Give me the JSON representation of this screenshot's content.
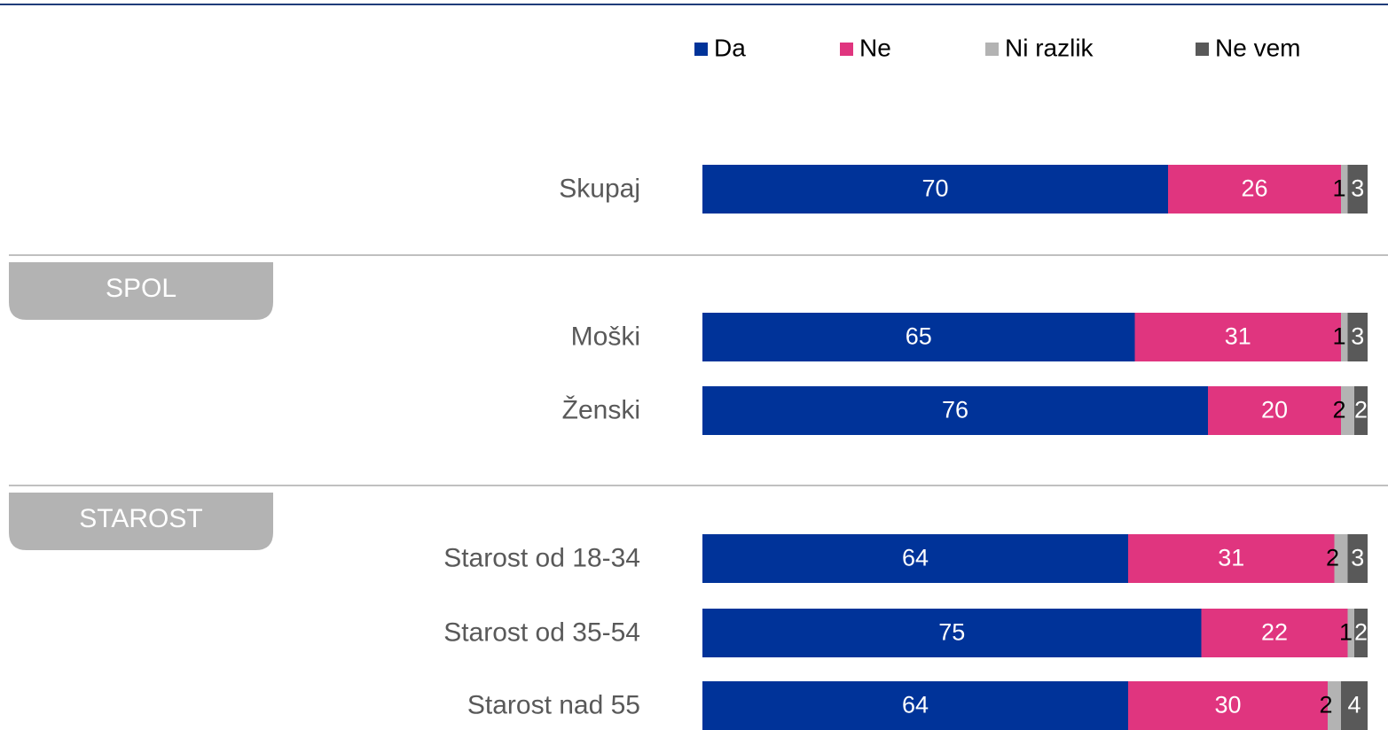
{
  "chart_data": {
    "type": "stacked_bar_horizontal",
    "categories": [
      "Skupaj",
      "Moški",
      "Ženski",
      "Starost od 18-34",
      "Starost od 35-54",
      "Starost nad 55"
    ],
    "groups": [
      "SPOL",
      "STAROST"
    ],
    "series": [
      {
        "name": "Da",
        "color": "#003399",
        "values": [
          70,
          65,
          76,
          64,
          75,
          64
        ]
      },
      {
        "name": "Ne",
        "color": "#e0357f",
        "values": [
          26,
          31,
          20,
          31,
          22,
          30
        ]
      },
      {
        "name": "Ni razlik",
        "color": "#b3b3b3",
        "values": [
          1,
          1,
          2,
          2,
          1,
          2
        ]
      },
      {
        "name": "Ne vem",
        "color": "#595959",
        "values": [
          3,
          3,
          2,
          3,
          2,
          4
        ]
      }
    ],
    "xlim": [
      0,
      100
    ]
  }
}
